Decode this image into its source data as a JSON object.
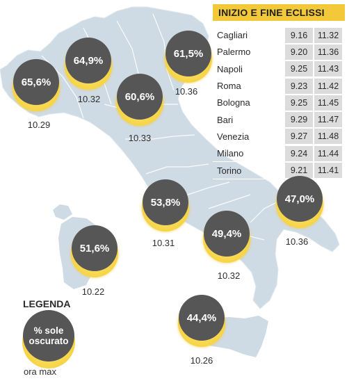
{
  "table": {
    "title": "INIZIO E FINE ECLISSI",
    "rows": [
      {
        "city": "Cagliari",
        "start": "9.16",
        "end": "11.32"
      },
      {
        "city": "Palermo",
        "start": "9.20",
        "end": "11.36"
      },
      {
        "city": "Napoli",
        "start": "9.25",
        "end": "11.43"
      },
      {
        "city": "Roma",
        "start": "9.23",
        "end": "11.42"
      },
      {
        "city": "Bologna",
        "start": "9.25",
        "end": "11.45"
      },
      {
        "city": "Bari",
        "start": "9.29",
        "end": "11.47"
      },
      {
        "city": "Venezia",
        "start": "9.27",
        "end": "11.48"
      },
      {
        "city": "Milano",
        "start": "9.24",
        "end": "11.44"
      },
      {
        "city": "Torino",
        "start": "9.21",
        "end": "11.41"
      }
    ]
  },
  "markers": [
    {
      "percent": "65,6%",
      "time": "10.29"
    },
    {
      "percent": "64,9%",
      "time": "10.32"
    },
    {
      "percent": "60,6%",
      "time": "10.33"
    },
    {
      "percent": "61,5%",
      "time": "10.36"
    },
    {
      "percent": "53,8%",
      "time": "10.31"
    },
    {
      "percent": "47,0%",
      "time": "10.36"
    },
    {
      "percent": "51,6%",
      "time": "10.22"
    },
    {
      "percent": "49,4%",
      "time": "10.32"
    },
    {
      "percent": "44,4%",
      "time": "10.26"
    }
  ],
  "legend": {
    "title": "LEGENDA",
    "line1": "% sole",
    "line2": "oscurato",
    "time_label": "ora max"
  },
  "colors": {
    "land": "#cfdbe4",
    "borders": "#ffffff",
    "sun": "#f5d24a",
    "moon": "#565656",
    "table_header": "#f3c93a",
    "table_cell": "#dcdcdc"
  }
}
